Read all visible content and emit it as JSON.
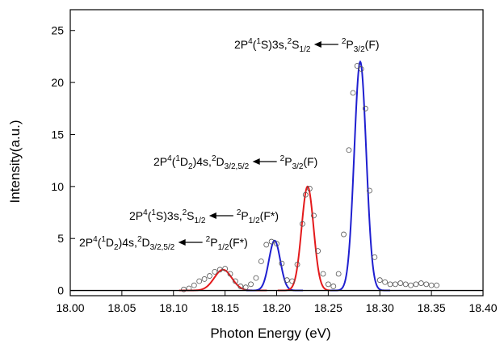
{
  "chart_data": {
    "type": "line",
    "xlabel": "Photon Energy (eV)",
    "ylabel": "Intensity(a.u.)",
    "xlim": [
      18.0,
      18.4
    ],
    "ylim": [
      -0.5,
      27
    ],
    "xticks": [
      "18.00",
      "18.05",
      "18.10",
      "18.15",
      "18.20",
      "18.25",
      "18.30",
      "18.35",
      "18.40"
    ],
    "yticks": [
      "0",
      "5",
      "10",
      "15",
      "20",
      "25"
    ],
    "grid": false,
    "legend": "none",
    "series": [
      {
        "role": "gaussian-fit",
        "color": "#e41a1c",
        "peaks": [
          {
            "center": 18.148,
            "height": 2.0,
            "sigma": 0.0085
          }
        ]
      },
      {
        "role": "gaussian-fit",
        "color": "#1f1fd0",
        "peaks": [
          {
            "center": 18.198,
            "height": 4.8,
            "sigma": 0.0055
          }
        ]
      },
      {
        "role": "gaussian-fit",
        "color": "#e41a1c",
        "peaks": [
          {
            "center": 18.23,
            "height": 10.0,
            "sigma": 0.0058
          }
        ]
      },
      {
        "role": "gaussian-fit",
        "color": "#1f1fd0",
        "peaks": [
          {
            "center": 18.281,
            "height": 22.0,
            "sigma": 0.0058
          }
        ]
      },
      {
        "role": "measured-points",
        "color": "#555555",
        "marker": "open-circle",
        "x": [
          18.11,
          18.115,
          18.12,
          18.125,
          18.13,
          18.135,
          18.14,
          18.145,
          18.15,
          18.155,
          18.16,
          18.165,
          18.17,
          18.175,
          18.18,
          18.185,
          18.19,
          18.195,
          18.2,
          18.205,
          18.21,
          18.215,
          18.22,
          18.225,
          18.228,
          18.232,
          18.236,
          18.24,
          18.245,
          18.25,
          18.255,
          18.26,
          18.265,
          18.27,
          18.274,
          18.278,
          18.282,
          18.286,
          18.29,
          18.295,
          18.3,
          18.305,
          18.31,
          18.315,
          18.32,
          18.325,
          18.33,
          18.335,
          18.34,
          18.345,
          18.35,
          18.355
        ],
        "y": [
          0.1,
          0.2,
          0.5,
          0.9,
          1.1,
          1.4,
          1.8,
          2.0,
          2.1,
          1.6,
          0.9,
          0.4,
          0.3,
          0.6,
          1.2,
          2.8,
          4.4,
          4.7,
          4.5,
          2.6,
          1.0,
          0.9,
          2.5,
          6.4,
          9.2,
          9.8,
          7.2,
          3.8,
          1.6,
          0.6,
          0.4,
          1.6,
          5.4,
          13.5,
          19.0,
          21.6,
          21.3,
          17.5,
          9.6,
          3.2,
          1.0,
          0.8,
          0.6,
          0.6,
          0.7,
          0.6,
          0.5,
          0.6,
          0.7,
          0.6,
          0.5,
          0.5
        ]
      }
    ],
    "annotations": [
      {
        "lower": "2P",
        "upper": "4",
        "lower2": "(",
        "upper2": "1",
        "lower3": "S)3s,",
        "upper3": "2",
        "lower4": "S",
        "sub": "1/2",
        "arrow": true,
        "tlower": "P",
        "tupper": "2",
        "tsub": "3/2",
        "tail": "(F)"
      },
      {
        "lower": "2P",
        "upper": "4",
        "lower2": "(",
        "upper2": "1",
        "lower3": "D",
        "sub0": "2",
        "lower3b": ")4s,",
        "upper3": "2",
        "lower4": "D",
        "sub": "3/2,5/2",
        "arrow": true,
        "tlower": "P",
        "tupper": "2",
        "tsub": "3/2",
        "tail": "(F)"
      },
      {
        "lower": "2P",
        "upper": "4",
        "lower2": "(",
        "upper2": "1",
        "lower3": "S)3s,",
        "upper3": "2",
        "lower4": "S",
        "sub": "1/2",
        "arrow": true,
        "tlower": "P",
        "tupper": "2",
        "tsub": "1/2",
        "tail": "(F*)"
      },
      {
        "lower": "2P",
        "upper": "4",
        "lower2": "(",
        "upper2": "1",
        "lower3": "D",
        "sub0": "2",
        "lower3b": ")4s,",
        "upper3": "2",
        "lower4": "D",
        "sub": "3/2,5/2",
        "arrow": true,
        "tlower": "P",
        "tupper": "2",
        "tsub": "1/2",
        "tail": "(F*)"
      }
    ]
  }
}
